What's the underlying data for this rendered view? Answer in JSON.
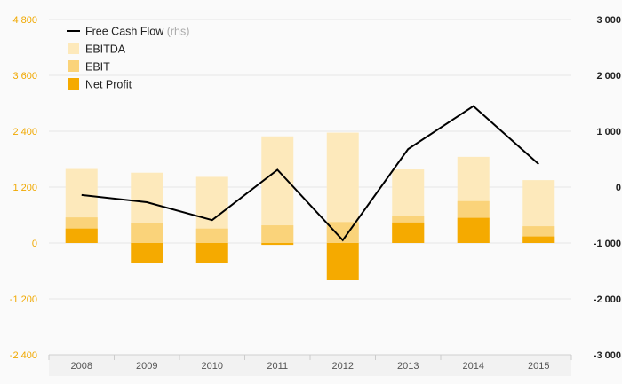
{
  "chart_data": {
    "type": "bar",
    "categories": [
      "2008",
      "2009",
      "2010",
      "2011",
      "2012",
      "2013",
      "2014",
      "2015"
    ],
    "series": [
      {
        "name": "EBITDA",
        "axis": "left",
        "color": "#fde9bb",
        "values": [
          1590,
          1510,
          1420,
          2290,
          2370,
          1580,
          1850,
          1350
        ]
      },
      {
        "name": "EBIT",
        "axis": "left",
        "color": "#fad37a",
        "values": [
          550,
          430,
          310,
          380,
          450,
          580,
          900,
          360
        ]
      },
      {
        "name": "Net Profit",
        "axis": "left",
        "color": "#f5aa00",
        "values": [
          310,
          -420,
          -420,
          -40,
          -800,
          440,
          540,
          140
        ]
      },
      {
        "name": "Free Cash Flow",
        "axis": "right",
        "type": "line",
        "color": "#000000",
        "values": [
          -140,
          -270,
          -590,
          310,
          -950,
          680,
          1450,
          410
        ]
      }
    ],
    "yAxisLeft": {
      "min": -2400,
      "max": 4800,
      "ticks": [
        -2400,
        -1200,
        0,
        1200,
        2400,
        3600,
        4800
      ],
      "tick_labels": [
        "-2 400",
        "-1 200",
        "0",
        "1 200",
        "2 400",
        "3 600",
        "4 800"
      ]
    },
    "yAxisRight": {
      "min": -3000,
      "max": 3000,
      "ticks": [
        -3000,
        -2000,
        -1000,
        0,
        1000,
        2000,
        3000
      ],
      "tick_labels": [
        "-3 000",
        "-2 000",
        "-1 000",
        "0",
        "1 000",
        "2 000",
        "3 000"
      ]
    },
    "legend": {
      "placement": "top-left",
      "items": [
        {
          "label": "Free Cash Flow",
          "suffix": "(rhs)",
          "symbol": "line",
          "color": "#000000"
        },
        {
          "label": "EBITDA",
          "suffix": "",
          "symbol": "box",
          "color": "#fde9bb"
        },
        {
          "label": "EBIT",
          "suffix": "",
          "symbol": "box",
          "color": "#fad37a"
        },
        {
          "label": "Net Profit",
          "suffix": "",
          "symbol": "box",
          "color": "#f5aa00"
        }
      ]
    },
    "grid": true,
    "colors": {
      "left_ticks": "#f0a800",
      "right_ticks": "#222222",
      "x_ticks": "#555555",
      "grid": "#e6e6e6"
    }
  }
}
